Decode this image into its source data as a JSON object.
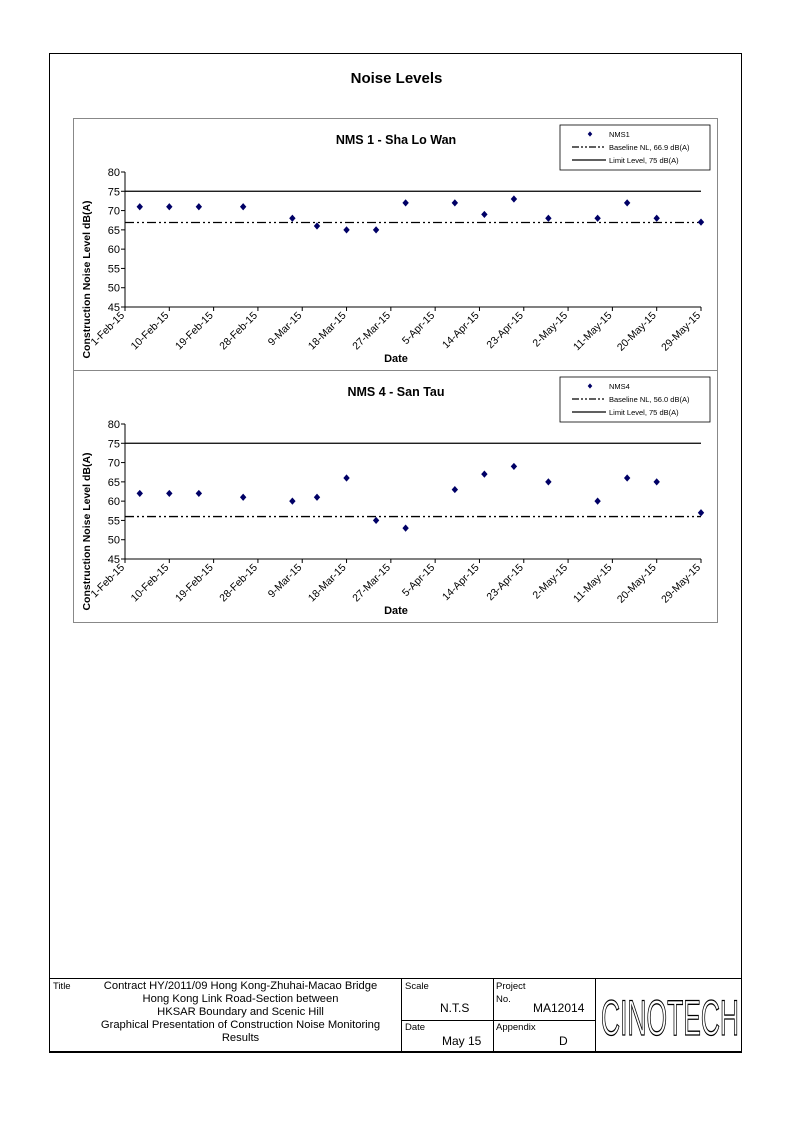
{
  "page": {
    "title": "Noise Levels"
  },
  "chart_data": [
    {
      "type": "scatter",
      "title": "NMS 1 - Sha Lo Wan",
      "xlabel": "Date",
      "ylabel": "Construction Noise Level  dB(A)",
      "xlim": [
        "2015-02-01",
        "2015-05-29"
      ],
      "ylim": [
        45,
        80
      ],
      "y_ticks": [
        45,
        50,
        55,
        60,
        65,
        70,
        75,
        80
      ],
      "x_tick_labels": [
        "1-Feb-15",
        "10-Feb-15",
        "19-Feb-15",
        "28-Feb-15",
        "9-Mar-15",
        "18-Mar-15",
        "27-Mar-15",
        "5-Apr-15",
        "14-Apr-15",
        "23-Apr-15",
        "2-May-15",
        "11-May-15",
        "20-May-15",
        "29-May-15"
      ],
      "x_tick_dates": [
        "2015-02-01",
        "2015-02-10",
        "2015-02-19",
        "2015-02-28",
        "2015-03-09",
        "2015-03-18",
        "2015-03-27",
        "2015-04-05",
        "2015-04-14",
        "2015-04-23",
        "2015-05-02",
        "2015-05-11",
        "2015-05-20",
        "2015-05-29"
      ],
      "grid": false,
      "legend_position": "top-right",
      "series": [
        {
          "name": "NMS1",
          "marker": "diamond",
          "color": "#000066",
          "x": [
            "2015-02-04",
            "2015-02-10",
            "2015-02-16",
            "2015-02-25",
            "2015-03-07",
            "2015-03-12",
            "2015-03-18",
            "2015-03-24",
            "2015-03-30",
            "2015-04-09",
            "2015-04-15",
            "2015-04-21",
            "2015-04-28",
            "2015-05-08",
            "2015-05-14",
            "2015-05-20",
            "2015-05-29"
          ],
          "y": [
            71,
            71,
            71,
            71,
            68,
            66,
            65,
            65,
            72,
            72,
            69,
            73,
            68,
            68,
            72,
            68,
            67
          ]
        },
        {
          "name": "Baseline NL, 66.9 dB(A)",
          "line": "dash-dot-dot",
          "y_constant": 66.9
        },
        {
          "name": "Limit Level, 75 dB(A)",
          "line": "solid",
          "y_constant": 75
        }
      ]
    },
    {
      "type": "scatter",
      "title": "NMS 4 - San Tau",
      "xlabel": "Date",
      "ylabel": "Construction Noise Level  dB(A)",
      "xlim": [
        "2015-02-01",
        "2015-05-29"
      ],
      "ylim": [
        45,
        80
      ],
      "y_ticks": [
        45,
        50,
        55,
        60,
        65,
        70,
        75,
        80
      ],
      "x_tick_labels": [
        "1-Feb-15",
        "10-Feb-15",
        "19-Feb-15",
        "28-Feb-15",
        "9-Mar-15",
        "18-Mar-15",
        "27-Mar-15",
        "5-Apr-15",
        "14-Apr-15",
        "23-Apr-15",
        "2-May-15",
        "11-May-15",
        "20-May-15",
        "29-May-15"
      ],
      "x_tick_dates": [
        "2015-02-01",
        "2015-02-10",
        "2015-02-19",
        "2015-02-28",
        "2015-03-09",
        "2015-03-18",
        "2015-03-27",
        "2015-04-05",
        "2015-04-14",
        "2015-04-23",
        "2015-05-02",
        "2015-05-11",
        "2015-05-20",
        "2015-05-29"
      ],
      "grid": false,
      "legend_position": "top-right",
      "series": [
        {
          "name": "NMS4",
          "marker": "diamond",
          "color": "#000066",
          "x": [
            "2015-02-04",
            "2015-02-10",
            "2015-02-16",
            "2015-02-25",
            "2015-03-07",
            "2015-03-12",
            "2015-03-18",
            "2015-03-24",
            "2015-03-30",
            "2015-04-09",
            "2015-04-15",
            "2015-04-21",
            "2015-04-28",
            "2015-05-08",
            "2015-05-14",
            "2015-05-20",
            "2015-05-29"
          ],
          "y": [
            62,
            62,
            62,
            61,
            60,
            61,
            66,
            55,
            53,
            63,
            67,
            69,
            65,
            60,
            66,
            65,
            57
          ]
        },
        {
          "name": "Baseline NL, 56.0 dB(A)",
          "line": "dash-dot-dot",
          "y_constant": 56.0
        },
        {
          "name": "Limit Level, 75 dB(A)",
          "line": "solid",
          "y_constant": 75
        }
      ]
    }
  ],
  "title_block": {
    "title_label": "Title",
    "title_lines": [
      "Contract HY/2011/09 Hong Kong-Zhuhai-Macao Bridge",
      "Hong Kong Link Road-Section between",
      "HKSAR Boundary and Scenic Hill",
      "Graphical Presentation of Construction Noise Monitoring",
      "Results"
    ],
    "scale_label": "Scale",
    "scale_value": "N.T.S",
    "project_label": "Project",
    "project_no_label": "No.",
    "project_value": "MA12014",
    "date_label": "Date",
    "date_value": "May 15",
    "appendix_label": "Appendix",
    "appendix_value": "D",
    "logo_text": "CINOTECH"
  }
}
